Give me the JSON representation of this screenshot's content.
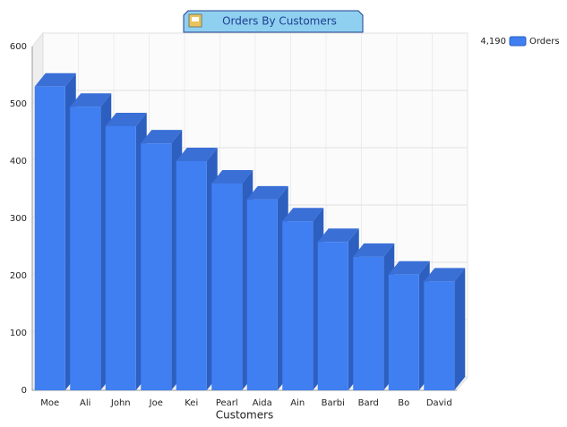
{
  "chart_data": {
    "type": "bar3d",
    "title": "Orders By Customers",
    "x_label": "Customers",
    "categories": [
      "Moe",
      "Ali",
      "John",
      "Joe",
      "Kei",
      "Pearl",
      "Aida",
      "Ain",
      "Barbi",
      "Bard",
      "Bo",
      "David"
    ],
    "series": [
      {
        "name": "Orders",
        "color": "#3f7ff2",
        "values": [
          530,
          495,
          461,
          431,
          400,
          361,
          333,
          295,
          259,
          233,
          202,
          190
        ]
      }
    ],
    "legend_total": "4,190",
    "ylim": [
      0,
      600
    ],
    "yticks": [
      0,
      100,
      200,
      300,
      400,
      500,
      600
    ],
    "grid": true,
    "legend": "top-right"
  }
}
